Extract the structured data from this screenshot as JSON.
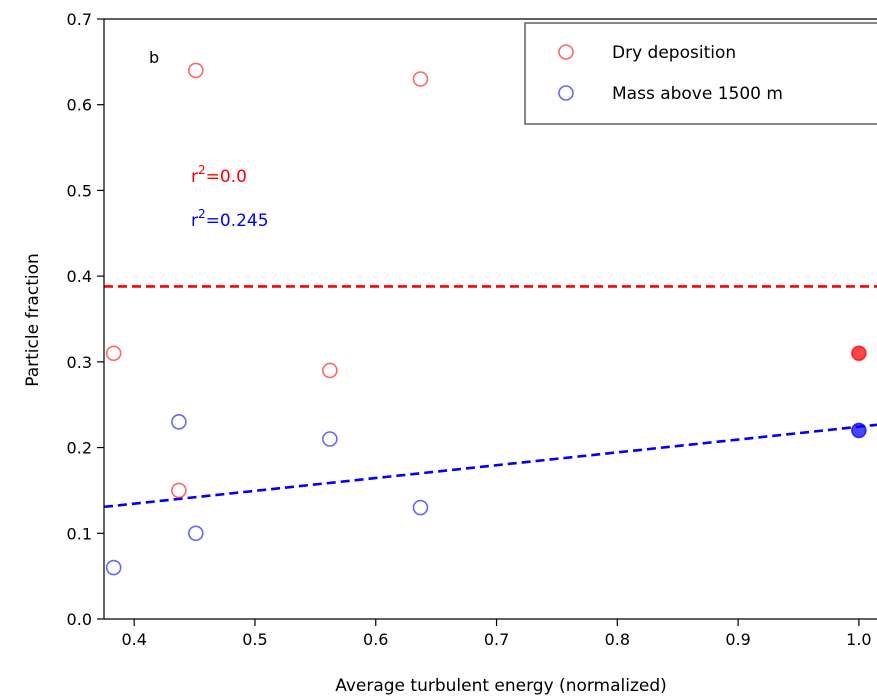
{
  "chart_data": {
    "type": "scatter",
    "panel_label": "b",
    "xlabel": "Average turbulent energy (normalized)",
    "ylabel": "Particle fraction",
    "xlim": [
      0.375,
      1.015
    ],
    "ylim": [
      0.0,
      0.7
    ],
    "x_ticks": [
      0.4,
      0.5,
      0.6,
      0.7,
      0.8,
      0.9,
      1.0
    ],
    "x_tick_labels": [
      "0.4",
      "0.5",
      "0.6",
      "0.7",
      "0.8",
      "0.9",
      "1.0"
    ],
    "y_ticks": [
      0.0,
      0.1,
      0.2,
      0.3,
      0.4,
      0.5,
      0.6,
      0.7
    ],
    "y_tick_labels": [
      "0.0",
      "0.1",
      "0.2",
      "0.3",
      "0.4",
      "0.5",
      "0.6",
      "0.7"
    ],
    "grid": false,
    "legend_position": "top-right",
    "series": [
      {
        "name": "Dry deposition",
        "color": "#ff0000",
        "marker": "open-circle",
        "points": [
          {
            "x": 0.383,
            "y": 0.31
          },
          {
            "x": 0.437,
            "y": 0.15
          },
          {
            "x": 0.451,
            "y": 0.64
          },
          {
            "x": 0.562,
            "y": 0.29
          },
          {
            "x": 0.637,
            "y": 0.63
          }
        ],
        "highlight_points": [
          {
            "x": 1.0,
            "y": 0.31
          }
        ],
        "fit_line": {
          "intercept": 0.388,
          "slope": 0.0,
          "r2_label": "r",
          "r2_value": "=0.0"
        }
      },
      {
        "name": "Mass above 1500 m",
        "color": "#0000ff",
        "marker": "open-circle",
        "points": [
          {
            "x": 0.383,
            "y": 0.06
          },
          {
            "x": 0.437,
            "y": 0.23
          },
          {
            "x": 0.451,
            "y": 0.1
          },
          {
            "x": 0.562,
            "y": 0.21
          },
          {
            "x": 0.637,
            "y": 0.13
          }
        ],
        "highlight_points": [
          {
            "x": 1.0,
            "y": 0.22
          }
        ],
        "fit_line": {
          "intercept": 0.0747,
          "slope": 0.1496,
          "r2_label": "r",
          "r2_value": "=0.245"
        }
      }
    ]
  }
}
